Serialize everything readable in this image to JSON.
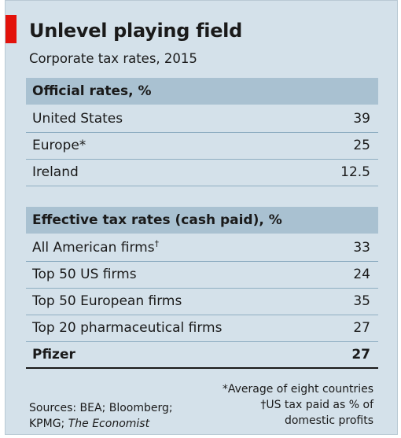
{
  "title": "Unlevel playing field",
  "subtitle": "Corporate tax rates, 2015",
  "colors": {
    "accent": "#e3120b",
    "background": "#d4e1ea",
    "header": "#a9c1d1"
  },
  "chart_data": {
    "type": "table",
    "title": "Unlevel playing field",
    "subtitle": "Corporate tax rates, 2015",
    "sections": [
      {
        "header": "Official rates, %",
        "rows": [
          {
            "label": "United States",
            "marker": "",
            "value": "39"
          },
          {
            "label": "Europe",
            "marker": "*",
            "value": "25"
          },
          {
            "label": "Ireland",
            "marker": "",
            "value": "12.5"
          }
        ]
      },
      {
        "header": "Effective tax rates (cash paid), %",
        "rows": [
          {
            "label": "All American firms",
            "marker": "†",
            "value": "33"
          },
          {
            "label": "Top 50 US firms",
            "marker": "",
            "value": "24"
          },
          {
            "label": "Top 50 European firms",
            "marker": "",
            "value": "35"
          },
          {
            "label": "Top 20 pharmaceutical firms",
            "marker": "",
            "value": "27"
          },
          {
            "label": "Pfizer",
            "marker": "",
            "value": "27"
          }
        ]
      }
    ]
  },
  "footer": {
    "sources_line1": "Sources: BEA; Bloomberg;",
    "sources_line2": "KPMG; ",
    "sources_italic": "The Economist",
    "note1": "*Average of eight countries",
    "note2": "†US tax paid as % of",
    "note3": "domestic profits"
  }
}
